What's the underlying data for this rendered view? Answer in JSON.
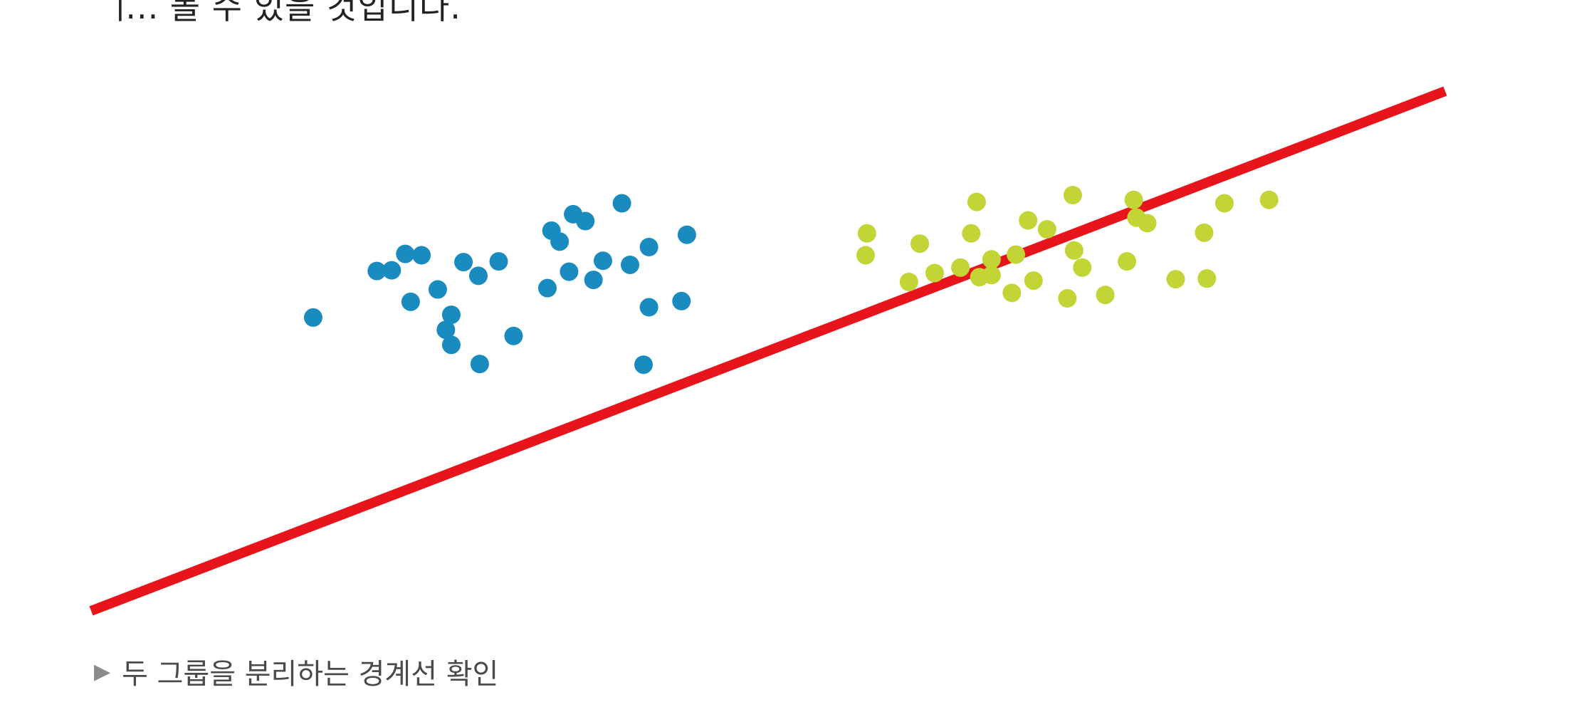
{
  "intro_text": "ᅟᅵ... 볼 수 있을 것입니다.",
  "caption": {
    "marker": "▶",
    "text": "두 그룹을 분리하는 경계선 확인"
  },
  "colors": {
    "group_a": "#1a8bbf",
    "group_b": "#c2d436",
    "boundary": "#e8141b"
  },
  "chart_data": {
    "type": "scatter",
    "title": "",
    "xlabel": "",
    "ylabel": "",
    "axes_visible": false,
    "grid": false,
    "xlim": [
      0,
      1000
    ],
    "ylim": [
      0,
      760
    ],
    "series": [
      {
        "color_key": "group_a",
        "points": [
          [
            365,
            570
          ],
          [
            275,
            510
          ],
          [
            236,
            452
          ],
          [
            164,
            429
          ],
          [
            222,
            498
          ],
          [
            346,
            540
          ],
          [
            436,
            453
          ],
          [
            371,
            484
          ],
          [
            440,
            550
          ],
          [
            356,
            580
          ],
          [
            244,
            520
          ],
          [
            266,
            389
          ],
          [
            211,
            497
          ],
          [
            353,
            496
          ],
          [
            256,
            470
          ],
          [
            286,
            490
          ],
          [
            398,
            506
          ],
          [
            337,
            472
          ],
          [
            378,
            512
          ],
          [
            408,
            360
          ],
          [
            262,
            411
          ],
          [
            340,
            556
          ],
          [
            412,
            444
          ],
          [
            266,
            433
          ],
          [
            301,
            511
          ],
          [
            412,
            532
          ],
          [
            312,
            402
          ],
          [
            392,
            596
          ],
          [
            287,
            361
          ],
          [
            232,
            522
          ]
        ]
      },
      {
        "color_key": "group_b",
        "points": [
          [
            654,
            598
          ],
          [
            837,
            596
          ],
          [
            770,
            601
          ],
          [
            692,
            571
          ],
          [
            725,
            608
          ],
          [
            706,
            558
          ],
          [
            772,
            575
          ],
          [
            650,
            552
          ],
          [
            665,
            491
          ],
          [
            680,
            465
          ],
          [
            726,
            527
          ],
          [
            765,
            511
          ],
          [
            870,
            601
          ],
          [
            822,
            553
          ],
          [
            780,
            567
          ],
          [
            642,
            502
          ],
          [
            732,
            502
          ],
          [
            683,
            521
          ],
          [
            604,
            481
          ],
          [
            721,
            457
          ],
          [
            665,
            514
          ],
          [
            573,
            552
          ],
          [
            696,
            483
          ],
          [
            801,
            485
          ],
          [
            656,
            488
          ],
          [
            623,
            494
          ],
          [
            749,
            462
          ],
          [
            612,
            537
          ],
          [
            824,
            486
          ],
          [
            572,
            520
          ]
        ]
      }
    ],
    "boundary_line": {
      "points": [
        [
          0,
          0
        ],
        [
          1000,
          760
        ]
      ]
    }
  }
}
